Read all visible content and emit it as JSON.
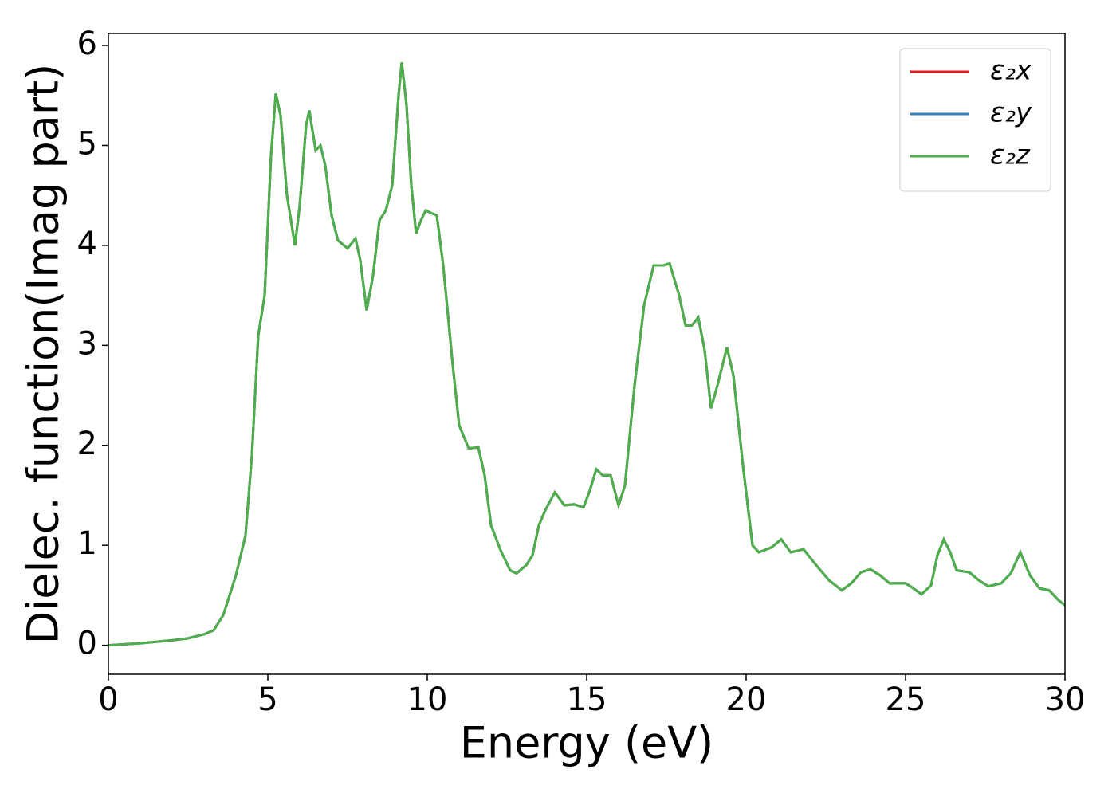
{
  "chart_data": {
    "type": "line",
    "x_label": "Energy (eV)",
    "y_label": "Dielec. function(Imag part)",
    "xlim": [
      0,
      30
    ],
    "ylim": [
      -0.29,
      6.12
    ],
    "xticks": [
      0,
      5,
      10,
      15,
      20,
      25,
      30
    ],
    "yticks": [
      0,
      1,
      2,
      3,
      4,
      5,
      6
    ],
    "legend": "upper right",
    "x": [
      0,
      1,
      2,
      2.5,
      3,
      3.3,
      3.6,
      4.0,
      4.3,
      4.5,
      4.6,
      4.7,
      4.9,
      5.0,
      5.1,
      5.25,
      5.4,
      5.6,
      5.85,
      6.0,
      6.2,
      6.3,
      6.5,
      6.65,
      6.8,
      7.0,
      7.2,
      7.5,
      7.75,
      7.9,
      8.1,
      8.3,
      8.5,
      8.7,
      8.9,
      9.1,
      9.2,
      9.35,
      9.5,
      9.65,
      9.8,
      9.95,
      10.15,
      10.3,
      10.5,
      10.8,
      11.0,
      11.3,
      11.6,
      11.8,
      12.0,
      12.3,
      12.6,
      12.8,
      13.1,
      13.3,
      13.5,
      13.7,
      14.0,
      14.3,
      14.6,
      14.9,
      15.1,
      15.3,
      15.5,
      15.75,
      16.0,
      16.2,
      16.5,
      16.8,
      17.1,
      17.4,
      17.6,
      17.9,
      18.1,
      18.3,
      18.5,
      18.7,
      18.9,
      19.1,
      19.4,
      19.6,
      19.9,
      20.2,
      20.4,
      20.8,
      21.1,
      21.4,
      21.8,
      22.2,
      22.6,
      23.0,
      23.3,
      23.6,
      23.9,
      24.2,
      24.5,
      25.0,
      25.2,
      25.5,
      25.8,
      26.0,
      26.2,
      26.4,
      26.6,
      27.0,
      27.3,
      27.6,
      28.0,
      28.3,
      28.6,
      28.9,
      29.2,
      29.5,
      29.8,
      30
    ],
    "series": [
      {
        "name": "ε₂x",
        "color": "#e41a1c",
        "values": [
          0.0,
          0.02,
          0.05,
          0.07,
          0.11,
          0.15,
          0.3,
          0.7,
          1.1,
          1.9,
          2.5,
          3.1,
          3.5,
          4.2,
          4.9,
          5.52,
          5.3,
          4.5,
          4.0,
          4.4,
          5.2,
          5.35,
          4.95,
          5.0,
          4.8,
          4.3,
          4.05,
          3.97,
          4.07,
          3.85,
          3.35,
          3.7,
          4.25,
          4.35,
          4.6,
          5.5,
          5.83,
          5.4,
          4.6,
          4.12,
          4.25,
          4.35,
          4.32,
          4.3,
          3.8,
          2.8,
          2.2,
          1.97,
          1.98,
          1.7,
          1.2,
          0.95,
          0.75,
          0.72,
          0.8,
          0.9,
          1.2,
          1.35,
          1.53,
          1.4,
          1.41,
          1.38,
          1.55,
          1.76,
          1.7,
          1.7,
          1.4,
          1.6,
          2.6,
          3.4,
          3.8,
          3.8,
          3.82,
          3.5,
          3.2,
          3.2,
          3.28,
          2.95,
          2.37,
          2.6,
          2.98,
          2.7,
          1.8,
          1.0,
          0.93,
          0.98,
          1.06,
          0.93,
          0.96,
          0.8,
          0.65,
          0.55,
          0.62,
          0.73,
          0.76,
          0.7,
          0.62,
          0.62,
          0.58,
          0.51,
          0.6,
          0.9,
          1.06,
          0.93,
          0.75,
          0.73,
          0.65,
          0.59,
          0.62,
          0.72,
          0.93,
          0.7,
          0.57,
          0.55,
          0.45,
          0.4
        ]
      },
      {
        "name": "ε₂y",
        "color": "#377eb8",
        "values": [
          0.0,
          0.02,
          0.05,
          0.07,
          0.11,
          0.15,
          0.3,
          0.7,
          1.1,
          1.9,
          2.5,
          3.1,
          3.5,
          4.2,
          4.9,
          5.52,
          5.3,
          4.5,
          4.0,
          4.4,
          5.2,
          5.35,
          4.95,
          5.0,
          4.8,
          4.3,
          4.05,
          3.97,
          4.07,
          3.85,
          3.35,
          3.7,
          4.25,
          4.35,
          4.6,
          5.5,
          5.83,
          5.4,
          4.6,
          4.12,
          4.25,
          4.35,
          4.32,
          4.3,
          3.8,
          2.8,
          2.2,
          1.97,
          1.98,
          1.7,
          1.2,
          0.95,
          0.75,
          0.72,
          0.8,
          0.9,
          1.2,
          1.35,
          1.53,
          1.4,
          1.41,
          1.38,
          1.55,
          1.76,
          1.7,
          1.7,
          1.4,
          1.6,
          2.6,
          3.4,
          3.8,
          3.8,
          3.82,
          3.5,
          3.2,
          3.2,
          3.28,
          2.95,
          2.37,
          2.6,
          2.98,
          2.7,
          1.8,
          1.0,
          0.93,
          0.98,
          1.06,
          0.93,
          0.96,
          0.8,
          0.65,
          0.55,
          0.62,
          0.73,
          0.76,
          0.7,
          0.62,
          0.62,
          0.58,
          0.51,
          0.6,
          0.9,
          1.06,
          0.93,
          0.75,
          0.73,
          0.65,
          0.59,
          0.62,
          0.72,
          0.93,
          0.7,
          0.57,
          0.55,
          0.45,
          0.4
        ]
      },
      {
        "name": "ε₂z",
        "color": "#4daf4a",
        "values": [
          0.0,
          0.02,
          0.05,
          0.07,
          0.11,
          0.15,
          0.3,
          0.7,
          1.1,
          1.9,
          2.5,
          3.1,
          3.5,
          4.2,
          4.9,
          5.52,
          5.3,
          4.5,
          4.0,
          4.4,
          5.2,
          5.35,
          4.95,
          5.0,
          4.8,
          4.3,
          4.05,
          3.97,
          4.07,
          3.85,
          3.35,
          3.7,
          4.25,
          4.35,
          4.6,
          5.5,
          5.83,
          5.4,
          4.6,
          4.12,
          4.25,
          4.35,
          4.32,
          4.3,
          3.8,
          2.8,
          2.2,
          1.97,
          1.98,
          1.7,
          1.2,
          0.95,
          0.75,
          0.72,
          0.8,
          0.9,
          1.2,
          1.35,
          1.53,
          1.4,
          1.41,
          1.38,
          1.55,
          1.76,
          1.7,
          1.7,
          1.4,
          1.6,
          2.6,
          3.4,
          3.8,
          3.8,
          3.82,
          3.5,
          3.2,
          3.2,
          3.28,
          2.95,
          2.37,
          2.6,
          2.98,
          2.7,
          1.8,
          1.0,
          0.93,
          0.98,
          1.06,
          0.93,
          0.96,
          0.8,
          0.65,
          0.55,
          0.62,
          0.73,
          0.76,
          0.7,
          0.62,
          0.62,
          0.58,
          0.51,
          0.6,
          0.9,
          1.06,
          0.93,
          0.75,
          0.73,
          0.65,
          0.59,
          0.62,
          0.72,
          0.93,
          0.7,
          0.57,
          0.55,
          0.45,
          0.4
        ]
      }
    ]
  }
}
